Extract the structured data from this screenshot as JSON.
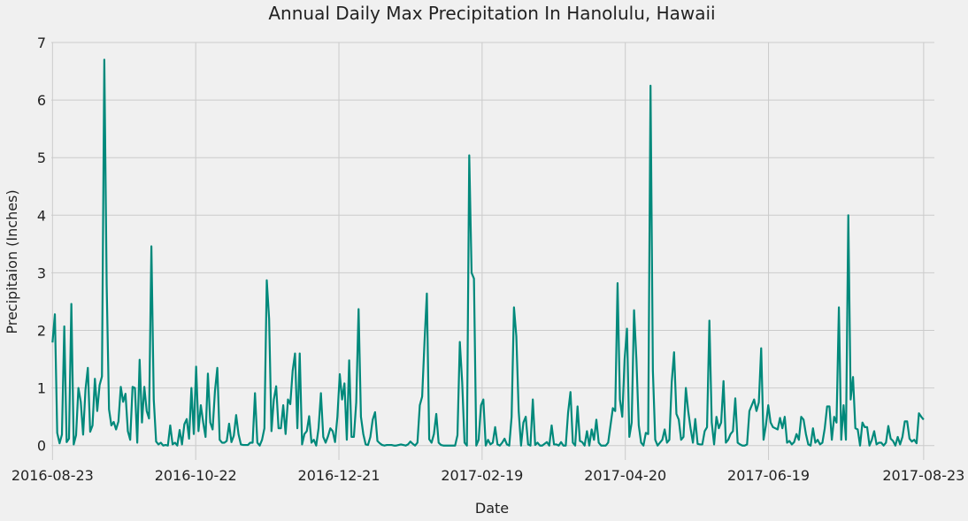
{
  "chart_data": {
    "type": "line",
    "title": "Annual Daily Max Precipitation In Hanolulu, Hawaii",
    "xlabel": "Date",
    "ylabel": "Precipitaion (Inches)",
    "x_tick_labels": [
      "2016-08-23",
      "2016-10-22",
      "2016-12-21",
      "2017-02-19",
      "2017-04-20",
      "2017-06-19",
      "2017-08-23"
    ],
    "x_tick_days": [
      0,
      60,
      120,
      180,
      240,
      300,
      365
    ],
    "y_ticks": [
      0,
      1,
      2,
      3,
      4,
      5,
      6,
      7
    ],
    "ylim": [
      -0.25,
      7
    ],
    "xlim_days": [
      -0.5,
      369.5
    ],
    "grid": true,
    "colors": {
      "line": "#00897b",
      "background": "#f0f0f0",
      "grid": "#cbcbcb"
    },
    "series": [
      {
        "start_date": "2016-08-23",
        "values": [
          1.79,
          2.28,
          0.22,
          0.04,
          0.19,
          2.07,
          0.06,
          0.12,
          2.46,
          0.02,
          0.18,
          1.0,
          0.76,
          0.19,
          0.97,
          1.35,
          0.24,
          0.35,
          1.16,
          0.6,
          1.05,
          1.2,
          6.7,
          2.8,
          0.63,
          0.35,
          0.41,
          0.28,
          0.42,
          1.02,
          0.76,
          0.9,
          0.25,
          0.1,
          1.02,
          1.0,
          0.05,
          1.49,
          0.4,
          1.02,
          0.6,
          0.47,
          3.46,
          0.8,
          0.07,
          0.02,
          0.05,
          0.0,
          0.01,
          0.0,
          0.35,
          0.02,
          0.05,
          0.0,
          0.27,
          0.02,
          0.37,
          0.46,
          0.12,
          1.0,
          0.2,
          1.37,
          0.25,
          0.7,
          0.4,
          0.15,
          1.25,
          0.4,
          0.28,
          0.95,
          1.35,
          0.1,
          0.05,
          0.05,
          0.08,
          0.38,
          0.06,
          0.17,
          0.53,
          0.2,
          0.02,
          0.01,
          0.01,
          0.01,
          0.05,
          0.05,
          0.91,
          0.05,
          0.0,
          0.1,
          0.3,
          2.87,
          2.2,
          0.25,
          0.8,
          1.03,
          0.3,
          0.3,
          0.7,
          0.2,
          0.8,
          0.72,
          1.3,
          1.6,
          0.3,
          1.6,
          0.02,
          0.2,
          0.25,
          0.51,
          0.05,
          0.1,
          0.0,
          0.3,
          0.91,
          0.15,
          0.05,
          0.16,
          0.3,
          0.25,
          0.06,
          0.5,
          1.24,
          0.8,
          1.08,
          0.1,
          1.48,
          0.15,
          0.15,
          0.75,
          2.37,
          0.5,
          0.2,
          0.02,
          0.01,
          0.15,
          0.45,
          0.58,
          0.08,
          0.04,
          0.01,
          0.0,
          0.01,
          0.01,
          0.01,
          0.0,
          0.0,
          0.01,
          0.02,
          0.01,
          0.0,
          0.02,
          0.07,
          0.03,
          0.0,
          0.05,
          0.7,
          0.85,
          1.8,
          2.64,
          0.11,
          0.05,
          0.2,
          0.55,
          0.05,
          0.01,
          0.0,
          0.0,
          0.0,
          0.0,
          0.0,
          0.0,
          0.18,
          1.8,
          1.1,
          0.05,
          0.0,
          5.04,
          3.0,
          2.9,
          0.0,
          0.1,
          0.7,
          0.8,
          0.0,
          0.1,
          0.02,
          0.05,
          0.32,
          0.02,
          0.0,
          0.05,
          0.12,
          0.02,
          0.0,
          0.5,
          2.4,
          1.9,
          0.6,
          0.0,
          0.4,
          0.5,
          0.02,
          0.0,
          0.8,
          0.01,
          0.05,
          0.0,
          0.0,
          0.03,
          0.06,
          0.0,
          0.35,
          0.02,
          0.02,
          0.0,
          0.06,
          0.0,
          0.0,
          0.58,
          0.93,
          0.05,
          0.0,
          0.68,
          0.08,
          0.06,
          0.0,
          0.25,
          0.0,
          0.28,
          0.1,
          0.45,
          0.05,
          0.0,
          0.0,
          0.0,
          0.05,
          0.35,
          0.65,
          0.6,
          2.82,
          0.8,
          0.5,
          1.5,
          2.03,
          0.15,
          0.4,
          2.35,
          1.5,
          0.35,
          0.05,
          0.0,
          0.22,
          0.2,
          6.25,
          1.3,
          0.1,
          0.0,
          0.05,
          0.1,
          0.28,
          0.05,
          0.1,
          1.1,
          1.62,
          0.55,
          0.45,
          0.1,
          0.15,
          1.0,
          0.6,
          0.3,
          0.05,
          0.46,
          0.03,
          0.02,
          0.02,
          0.25,
          0.32,
          2.17,
          0.4,
          0.02,
          0.5,
          0.3,
          0.4,
          1.12,
          0.05,
          0.1,
          0.2,
          0.25,
          0.82,
          0.05,
          0.02,
          0.0,
          0.0,
          0.02,
          0.6,
          0.7,
          0.8,
          0.6,
          0.75,
          1.69,
          0.1,
          0.35,
          0.7,
          0.4,
          0.32,
          0.3,
          0.28,
          0.48,
          0.3,
          0.5,
          0.05,
          0.08,
          0.02,
          0.06,
          0.2,
          0.1,
          0.5,
          0.45,
          0.2,
          0.02,
          0.0,
          0.3,
          0.05,
          0.1,
          0.02,
          0.05,
          0.3,
          0.68,
          0.68,
          0.1,
          0.5,
          0.4,
          2.4,
          0.1,
          0.7,
          0.1,
          4.0,
          0.8,
          1.19,
          0.3,
          0.28,
          0.0,
          0.4,
          0.32,
          0.32,
          0.0,
          0.1,
          0.25,
          0.02,
          0.05,
          0.05,
          0.0,
          0.05,
          0.34,
          0.12,
          0.08,
          0.0,
          0.15,
          0.02,
          0.15,
          0.42,
          0.42,
          0.12,
          0.07,
          0.1,
          0.04,
          0.56,
          0.5,
          0.45
        ]
      }
    ]
  }
}
